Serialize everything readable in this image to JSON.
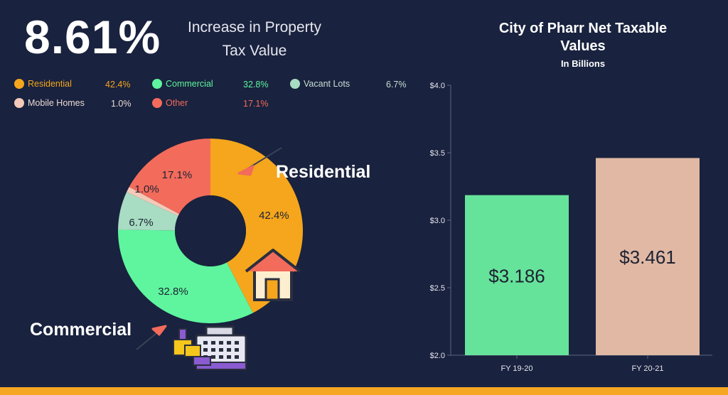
{
  "headline": {
    "value": "8.61%",
    "line1": "Increase in Property",
    "line2": "Tax Value"
  },
  "legend": [
    {
      "label": "Residential",
      "pct": "42.4%",
      "color": "#f5a61c"
    },
    {
      "label": "Commercial",
      "pct": "32.8%",
      "color": "#5ef59e"
    },
    {
      "label": "Vacant Lots",
      "pct": "6.7%",
      "color": "#a8dcc3"
    },
    {
      "label": "Mobile Homes",
      "pct": "1.0%",
      "color": "#f3c9b8"
    },
    {
      "label": "Other",
      "pct": "17.1%",
      "color": "#f26b5b"
    }
  ],
  "callouts": {
    "residential": "Residential",
    "commercial": "Commercial"
  },
  "bar_chart": {
    "title_line1": "City of Pharr Net Taxable",
    "title_line2": "Values",
    "subtitle": "In Billions"
  },
  "chart_data": [
    {
      "type": "pie",
      "donut": true,
      "categories": [
        "Residential",
        "Commercial",
        "Vacant Lots",
        "Mobile Homes",
        "Other"
      ],
      "values": [
        42.4,
        32.8,
        6.7,
        1.0,
        17.1
      ],
      "labels": [
        "42.4%",
        "32.8%",
        "6.7%",
        "1.0%",
        "17.1%"
      ],
      "colors": [
        "#f5a61c",
        "#5ef59e",
        "#a8dcc3",
        "#f3c9b8",
        "#f26b5b"
      ]
    },
    {
      "type": "bar",
      "title": "City of Pharr Net Taxable Values",
      "subtitle": "In Billions",
      "categories": [
        "FY 19-20",
        "FY 20-21"
      ],
      "values": [
        3.186,
        3.461
      ],
      "value_labels": [
        "$3.186",
        "$3.461"
      ],
      "colors": [
        "#66e39a",
        "#e0b8a4"
      ],
      "ylim": [
        2.0,
        4.0
      ],
      "yticks": [
        2.0,
        2.5,
        3.0,
        3.5,
        4.0
      ],
      "ytick_labels": [
        "$2.0",
        "$2.5",
        "$3.0",
        "$3.5",
        "$4.0"
      ],
      "grid": false
    }
  ]
}
